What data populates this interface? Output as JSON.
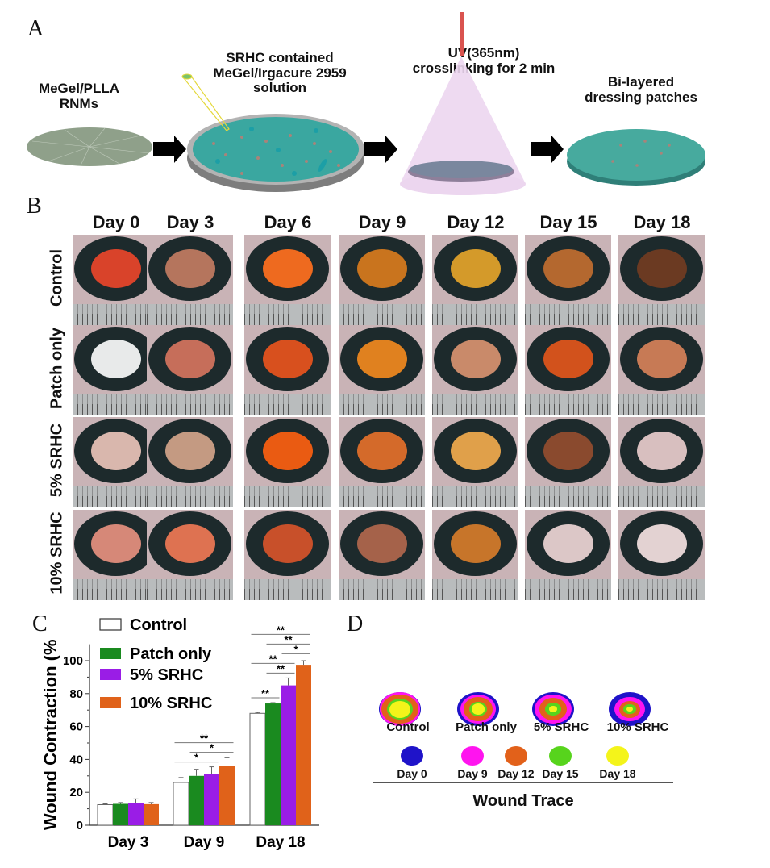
{
  "panelA": {
    "letter": "A",
    "steps": [
      {
        "label_lines": [
          "MeGel/PLLA",
          "RNMs"
        ]
      },
      {
        "label_lines": [
          "SRHC contained",
          "MeGel/Irgacure 2959",
          "solution"
        ]
      },
      {
        "label_lines": [
          "UV(365nm)",
          "crosslinking for 2 min"
        ]
      },
      {
        "label_lines": [
          "Bi-layered",
          "dressing patches"
        ]
      }
    ],
    "colors": {
      "gel": "#3aa7a0",
      "dish_rim": "#9a9a9a",
      "rnm": "#8fa08a",
      "uv_cone": "#e8d0ec",
      "uv_beam": "#d9534f",
      "arrow": "#000000"
    }
  },
  "panelB": {
    "letter": "B",
    "columns": [
      "Day 0",
      "Day 3",
      "Day 6",
      "Day 9",
      "Day 12",
      "Day 15",
      "Day 18"
    ],
    "rows": [
      {
        "label": "Control",
        "wound_colors": [
          "#d9432a",
          "#b5755d",
          "#ee6a1f",
          "#c9741e",
          "#d49a2a",
          "#b4682f",
          "#6b3a22"
        ]
      },
      {
        "label": "Patch only",
        "wound_colors": [
          "#e8eaea",
          "#c66e5a",
          "#d8501e",
          "#e0811f",
          "#c98a6a",
          "#d2521c",
          "#c77a55"
        ]
      },
      {
        "label": "5% SRHC",
        "wound_colors": [
          "#d9b7ad",
          "#c49a82",
          "#ea5b12",
          "#d46a2a",
          "#e0a04a",
          "#8a4a2e",
          "#d8bfbf"
        ]
      },
      {
        "label": "10% SRHC",
        "wound_colors": [
          "#d68878",
          "#de7251",
          "#c8502a",
          "#a5624a",
          "#c7752a",
          "#dcc7c7",
          "#e3d2d2"
        ]
      }
    ]
  },
  "panelC": {
    "letter": "C"
  },
  "chart_data": {
    "type": "bar",
    "title": "",
    "xlabel": "",
    "ylabel": "Wound Contraction (%",
    "ylim": [
      0,
      110
    ],
    "yticks": [
      0,
      20,
      40,
      60,
      80,
      100
    ],
    "categories": [
      "Day 3",
      "Day 9",
      "Day 18"
    ],
    "legend_position": "top-left",
    "series": [
      {
        "name": "Control",
        "color": "#ffffff",
        "values": [
          12.5,
          26,
          68
        ],
        "errors": [
          0.5,
          3,
          0.5
        ]
      },
      {
        "name": "Patch only",
        "color": "#1a8a1f",
        "values": [
          13,
          30,
          74
        ],
        "errors": [
          0.8,
          4,
          0.5
        ]
      },
      {
        "name": "5% SRHC",
        "color": "#9a1de6",
        "values": [
          13.5,
          31,
          85
        ],
        "errors": [
          2.5,
          4.5,
          4.5
        ]
      },
      {
        "name": "10% SRHC",
        "color": "#e0621a",
        "values": [
          12.8,
          36,
          97.5
        ],
        "errors": [
          1,
          5,
          2.5
        ]
      }
    ],
    "significance": [
      {
        "category": "Day 9",
        "from": "Control",
        "to": "5% SRHC",
        "label": "*"
      },
      {
        "category": "Day 9",
        "from": "Patch only",
        "to": "10% SRHC",
        "label": "*"
      },
      {
        "category": "Day 9",
        "from": "Control",
        "to": "10% SRHC",
        "label": "**"
      },
      {
        "category": "Day 18",
        "from": "Control",
        "to": "Patch only",
        "label": "**"
      },
      {
        "category": "Day 18",
        "from": "Patch only",
        "to": "5% SRHC",
        "label": "**"
      },
      {
        "category": "Day 18",
        "from": "Control",
        "to": "5% SRHC",
        "label": "**"
      },
      {
        "category": "Day 18",
        "from": "5% SRHC",
        "to": "10% SRHC",
        "label": "*"
      },
      {
        "category": "Day 18",
        "from": "Patch only",
        "to": "10% SRHC",
        "label": "**"
      },
      {
        "category": "Day 18",
        "from": "Control",
        "to": "10% SRHC",
        "label": "**"
      }
    ]
  },
  "panelD": {
    "letter": "D",
    "groups": [
      "Control",
      "Patch only",
      "5% SRHC",
      "10% SRHC"
    ],
    "legend": [
      {
        "label": "Day 0",
        "color": "#1f13c9"
      },
      {
        "label": "Day 9",
        "color": "#ff14ef"
      },
      {
        "label": "Day 12",
        "color": "#e2611a"
      },
      {
        "label": "Day 15",
        "color": "#57d41c"
      },
      {
        "label": "Day 18",
        "color": "#f4f41a"
      }
    ],
    "footer": "Wound Trace"
  }
}
